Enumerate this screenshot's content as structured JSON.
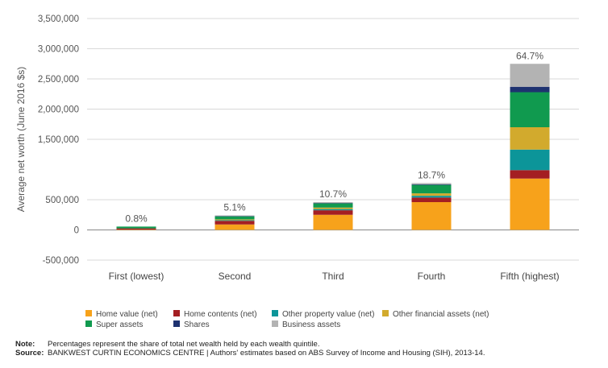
{
  "chart_data": {
    "type": "bar",
    "stacked": true,
    "ylabel": "Average net worth (June 2016 $s)",
    "ylim": [
      -500000,
      3500000
    ],
    "yticks": [
      {
        "value": 3500000,
        "label": "3,500,000"
      },
      {
        "value": 3000000,
        "label": "3,000,000"
      },
      {
        "value": 2500000,
        "label": "2,500,000"
      },
      {
        "value": 2000000,
        "label": "2,000,000"
      },
      {
        "value": 1500000,
        "label": "1,500,000"
      },
      {
        "value": 500000,
        "label": "500,000"
      },
      {
        "value": 0,
        "label": "0"
      },
      {
        "value": -500000,
        "label": "-500,000"
      }
    ],
    "grid": true,
    "categories": [
      "First (lowest)",
      "Second",
      "Third",
      "Fourth",
      "Fifth (highest)"
    ],
    "annotations": [
      "0.8%",
      "5.1%",
      "10.7%",
      "18.7%",
      "64.7%"
    ],
    "series": [
      {
        "name": "Home value (net)",
        "color": "#F7A21B",
        "values": [
          5000,
          90000,
          250000,
          460000,
          850000
        ]
      },
      {
        "name": "Home contents (net)",
        "color": "#A41E22",
        "values": [
          20000,
          60000,
          75000,
          75000,
          140000
        ]
      },
      {
        "name": "Other property value (net)",
        "color": "#0C9599",
        "values": [
          0,
          10000,
          20000,
          30000,
          340000
        ]
      },
      {
        "name": "Other financial assets (net)",
        "color": "#D2AA2D",
        "values": [
          0,
          15000,
          25000,
          40000,
          370000
        ]
      },
      {
        "name": "Super assets",
        "color": "#109A4F",
        "values": [
          30000,
          50000,
          70000,
          140000,
          580000
        ]
      },
      {
        "name": "Shares",
        "color": "#1E3270",
        "values": [
          0,
          5000,
          5000,
          10000,
          90000
        ]
      },
      {
        "name": "Business assets",
        "color": "#B3B3B3",
        "values": [
          0,
          10000,
          15000,
          20000,
          380000
        ]
      }
    ],
    "legend_position": "bottom"
  },
  "notes": {
    "note_key": "Note:",
    "note_text": "Percentages represent the share of total net wealth held by each wealth quintile.",
    "source_key": "Source:",
    "source_text": "BANKWEST CURTIN ECONOMICS CENTRE | Authors' estimates based on ABS Survey of Income and Housing (SIH), 2013-14."
  }
}
